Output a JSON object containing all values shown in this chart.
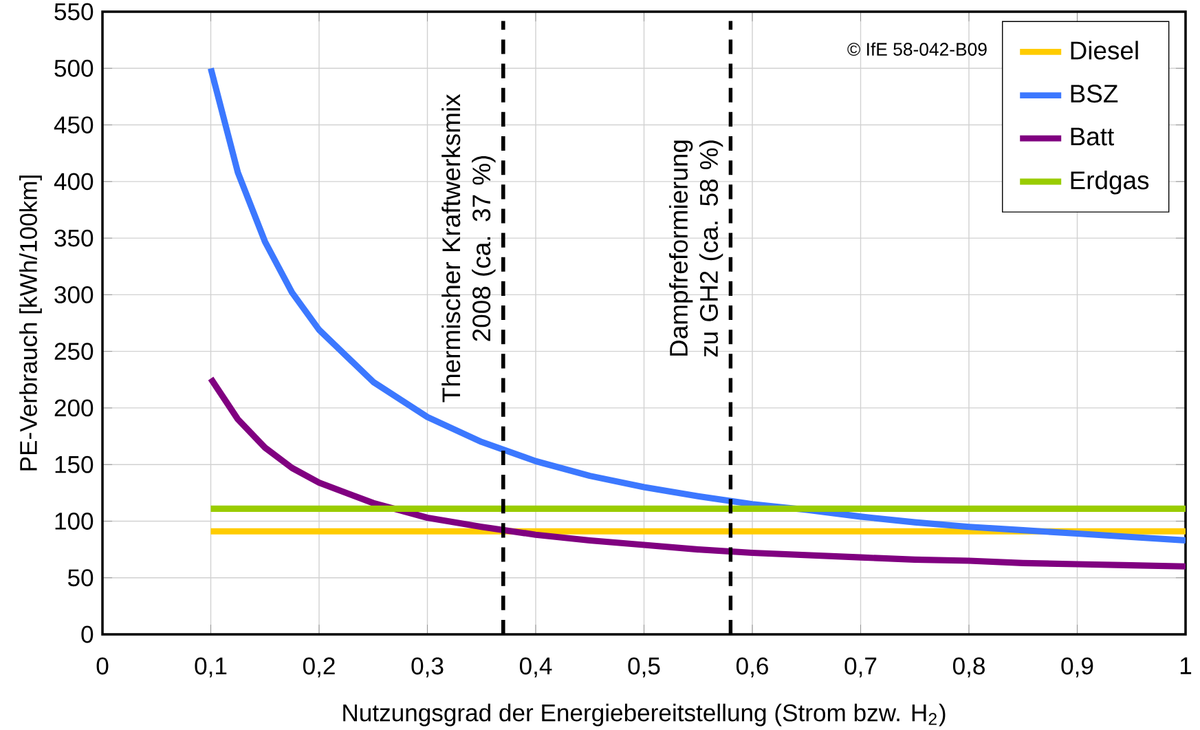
{
  "chart_data": {
    "type": "line",
    "xlabel": "Nutzungsgrad der Energiebereitstellung (Strom bzw. H$_{2}$)",
    "ylabel": "PE-Verbrauch [kWh/100km]",
    "x": [
      0.1,
      0.125,
      0.15,
      0.175,
      0.2,
      0.25,
      0.3,
      0.35,
      0.4,
      0.45,
      0.5,
      0.55,
      0.6,
      0.65,
      0.7,
      0.75,
      0.8,
      0.85,
      0.9,
      0.95,
      1.0
    ],
    "series": [
      {
        "name": "Diesel",
        "color": "#ffcc00",
        "values": [
          91,
          91,
          91,
          91,
          91,
          91,
          91,
          91,
          91,
          91,
          91,
          91,
          91,
          91,
          91,
          91,
          91,
          91,
          91,
          91,
          91
        ]
      },
      {
        "name": "BSZ",
        "color": "#3c78ff",
        "values": [
          500,
          408,
          347,
          302,
          269,
          223,
          192,
          170,
          153,
          140,
          130,
          122,
          115,
          110,
          104,
          99,
          95,
          92,
          89,
          86,
          83
        ]
      },
      {
        "name": "Batt",
        "color": "#800080",
        "values": [
          226,
          190,
          165,
          147,
          134,
          116,
          103,
          95,
          88,
          83,
          79,
          75,
          72,
          70,
          68,
          66,
          65,
          63,
          62,
          61,
          60
        ]
      },
      {
        "name": "Erdgas",
        "color": "#99cc00",
        "values": [
          111,
          111,
          111,
          111,
          111,
          111,
          111,
          111,
          111,
          111,
          111,
          111,
          111,
          111,
          111,
          111,
          111,
          111,
          111,
          111,
          111
        ]
      }
    ],
    "xlim": [
      0,
      1
    ],
    "ylim": [
      0,
      550
    ],
    "xticks": [
      0,
      {
        "value": 0.1,
        "label": "0,1"
      },
      {
        "value": 0.2,
        "label": "0,2"
      },
      {
        "value": 0.3,
        "label": "0,3"
      },
      {
        "value": 0.4,
        "label": "0,4"
      },
      {
        "value": 0.5,
        "label": "0,5"
      },
      {
        "value": 0.6,
        "label": "0,6"
      },
      {
        "value": 0.7,
        "label": "0,7"
      },
      {
        "value": 0.8,
        "label": "0,8"
      },
      {
        "value": 0.9,
        "label": "0,9"
      },
      1
    ],
    "yticks": [
      0,
      50,
      100,
      150,
      200,
      250,
      300,
      350,
      400,
      450,
      500,
      550
    ],
    "ref_lines": [
      {
        "axis": "x",
        "value": 0.37,
        "label": "Thermischer Kraftwerksmix 2008 (ca. 37 %)",
        "color": "#000000",
        "line_style": "dashed"
      },
      {
        "axis": "x",
        "value": 0.58,
        "label": "Dampfreformierung zu GH2 (ca. 58 %)",
        "color": "#000000",
        "line_style": "dashed"
      }
    ],
    "annotations": [
      "© IfE 58-042-B09"
    ],
    "grid": true,
    "legend": "top right"
  }
}
